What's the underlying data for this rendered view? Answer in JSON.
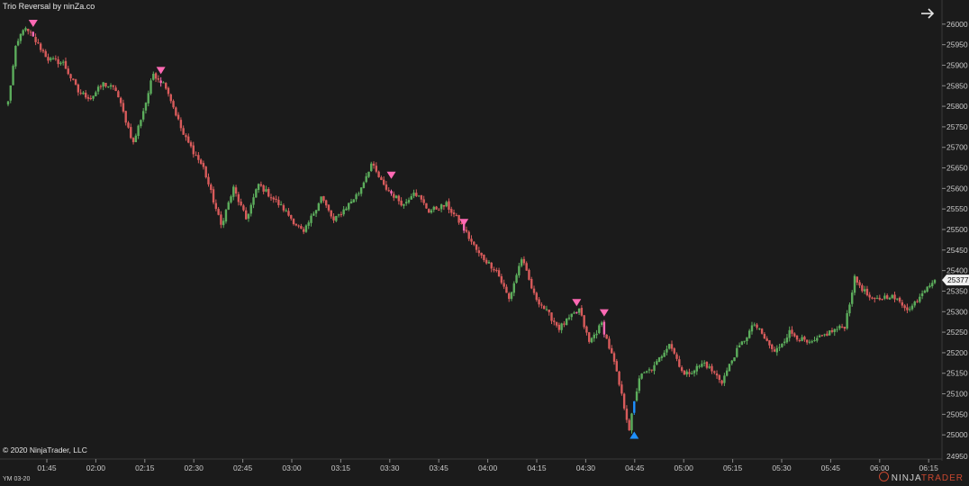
{
  "header": {
    "indicator_title": "Trio Reversal by ninZa.co"
  },
  "footer": {
    "copyright": "© 2020 NinjaTrader, LLC",
    "instrument": "YM 03-20",
    "logo_prefix": "NINJA",
    "logo_brand": "TRADER"
  },
  "icons": {
    "navigate": "arrow-right-icon",
    "logo": "ninjatrader-logo-icon"
  },
  "colors": {
    "background": "#1b1b1b",
    "up_candle": "#5cad5c",
    "down_candle": "#d85b5b",
    "sell_signal": "#ff69b4",
    "buy_signal": "#1e90ff",
    "axis_text": "#c8c8c8",
    "price_marker_bg": "#f0f0f0"
  },
  "chart_data": {
    "type": "candlestick",
    "instrument": "YM 03-20",
    "title": "Trio Reversal by ninZa.co",
    "ylim": [
      24950,
      26050
    ],
    "y_ticks": [
      25000,
      25050,
      25100,
      25150,
      25200,
      25250,
      25300,
      25350,
      25400,
      25450,
      25500,
      25550,
      25600,
      25650,
      25700,
      25750,
      25800,
      25850,
      25900,
      25950,
      26000
    ],
    "y_tick_labels": [
      "25000",
      "25050",
      "25100",
      "25150",
      "25200",
      "25250",
      "25300",
      "25350",
      "25400",
      "25450",
      "25500",
      "25550",
      "25600",
      "25650",
      "25700",
      "25750",
      "25800",
      "25850",
      "25900",
      "25950",
      "26000"
    ],
    "y_bottom_label": "24950",
    "x_ticks": [
      "01:45",
      "02:00",
      "02:15",
      "02:30",
      "02:45",
      "03:00",
      "03:15",
      "03:30",
      "03:45",
      "04:00",
      "04:15",
      "04:30",
      "04:45",
      "05:00",
      "05:15",
      "05:30",
      "05:45",
      "06:00",
      "06:15"
    ],
    "last_price": "25377",
    "grid": false,
    "legend": "none",
    "price_anchors": [
      {
        "t": 0,
        "p": 25810
      },
      {
        "t": 3,
        "p": 25940
      },
      {
        "t": 6,
        "p": 25990
      },
      {
        "t": 9,
        "p": 25975
      },
      {
        "t": 12,
        "p": 25950
      },
      {
        "t": 16,
        "p": 25915
      },
      {
        "t": 22,
        "p": 25905
      },
      {
        "t": 28,
        "p": 25835
      },
      {
        "t": 33,
        "p": 25820
      },
      {
        "t": 38,
        "p": 25855
      },
      {
        "t": 43,
        "p": 25840
      },
      {
        "t": 50,
        "p": 25710
      },
      {
        "t": 55,
        "p": 25810
      },
      {
        "t": 58,
        "p": 25880
      },
      {
        "t": 63,
        "p": 25850
      },
      {
        "t": 70,
        "p": 25730
      },
      {
        "t": 78,
        "p": 25650
      },
      {
        "t": 85,
        "p": 25510
      },
      {
        "t": 90,
        "p": 25600
      },
      {
        "t": 95,
        "p": 25525
      },
      {
        "t": 100,
        "p": 25610
      },
      {
        "t": 110,
        "p": 25550
      },
      {
        "t": 118,
        "p": 25490
      },
      {
        "t": 125,
        "p": 25580
      },
      {
        "t": 130,
        "p": 25520
      },
      {
        "t": 140,
        "p": 25590
      },
      {
        "t": 145,
        "p": 25660
      },
      {
        "t": 150,
        "p": 25605
      },
      {
        "t": 158,
        "p": 25560
      },
      {
        "t": 162,
        "p": 25595
      },
      {
        "t": 168,
        "p": 25545
      },
      {
        "t": 175,
        "p": 25560
      },
      {
        "t": 180,
        "p": 25520
      },
      {
        "t": 188,
        "p": 25440
      },
      {
        "t": 195,
        "p": 25400
      },
      {
        "t": 200,
        "p": 25330
      },
      {
        "t": 205,
        "p": 25430
      },
      {
        "t": 210,
        "p": 25340
      },
      {
        "t": 220,
        "p": 25260
      },
      {
        "t": 228,
        "p": 25305
      },
      {
        "t": 232,
        "p": 25225
      },
      {
        "t": 237,
        "p": 25270
      },
      {
        "t": 242,
        "p": 25175
      },
      {
        "t": 248,
        "p": 25015
      },
      {
        "t": 252,
        "p": 25140
      },
      {
        "t": 258,
        "p": 25165
      },
      {
        "t": 264,
        "p": 25225
      },
      {
        "t": 270,
        "p": 25145
      },
      {
        "t": 278,
        "p": 25175
      },
      {
        "t": 285,
        "p": 25130
      },
      {
        "t": 290,
        "p": 25195
      },
      {
        "t": 298,
        "p": 25270
      },
      {
        "t": 306,
        "p": 25200
      },
      {
        "t": 312,
        "p": 25250
      },
      {
        "t": 320,
        "p": 25220
      },
      {
        "t": 328,
        "p": 25250
      },
      {
        "t": 334,
        "p": 25265
      },
      {
        "t": 338,
        "p": 25380
      },
      {
        "t": 345,
        "p": 25325
      },
      {
        "t": 352,
        "p": 25340
      },
      {
        "t": 360,
        "p": 25305
      },
      {
        "t": 367,
        "p": 25365
      },
      {
        "t": 370,
        "p": 25377
      }
    ],
    "signals": [
      {
        "t": 10,
        "type": "sell",
        "price": 25980
      },
      {
        "t": 61,
        "type": "sell",
        "price": 25865
      },
      {
        "t": 153,
        "type": "sell",
        "price": 25610
      },
      {
        "t": 182,
        "type": "sell",
        "price": 25495
      },
      {
        "t": 227,
        "type": "sell",
        "price": 25300
      },
      {
        "t": 238,
        "type": "sell",
        "price": 25275
      },
      {
        "t": 250,
        "type": "buy",
        "price": 25030
      }
    ]
  }
}
